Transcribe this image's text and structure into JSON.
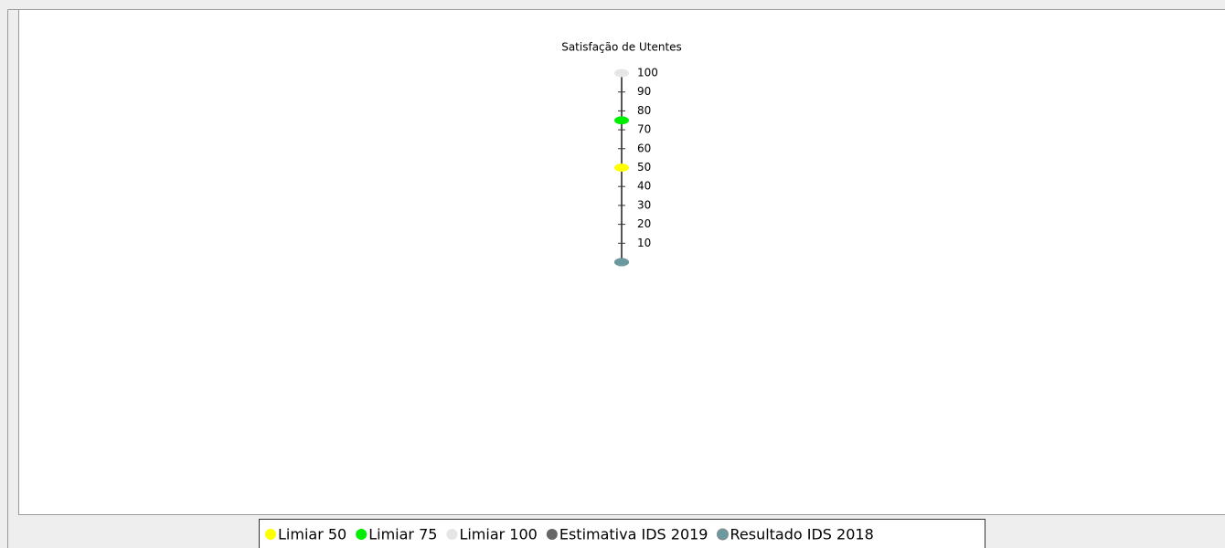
{
  "chart_data": {
    "type": "thermometer",
    "title": "Satisfação de Utentes",
    "ylim": [
      0,
      100
    ],
    "yticks": [
      10,
      20,
      30,
      40,
      50,
      60,
      70,
      80,
      90,
      100
    ],
    "axis_color": "#555555",
    "series": [
      {
        "name": "Limiar 50",
        "color": "#ffff00",
        "value": 50
      },
      {
        "name": "Limiar 75",
        "color": "#00ee00",
        "value": 75
      },
      {
        "name": "Limiar 100",
        "color": "#e6e6e6",
        "value": 100
      },
      {
        "name": "Estimativa IDS 2019",
        "color": "#666666",
        "value": 0
      },
      {
        "name": "Resultado IDS 2018",
        "color": "#6a9aa0",
        "value": 0
      }
    ]
  }
}
